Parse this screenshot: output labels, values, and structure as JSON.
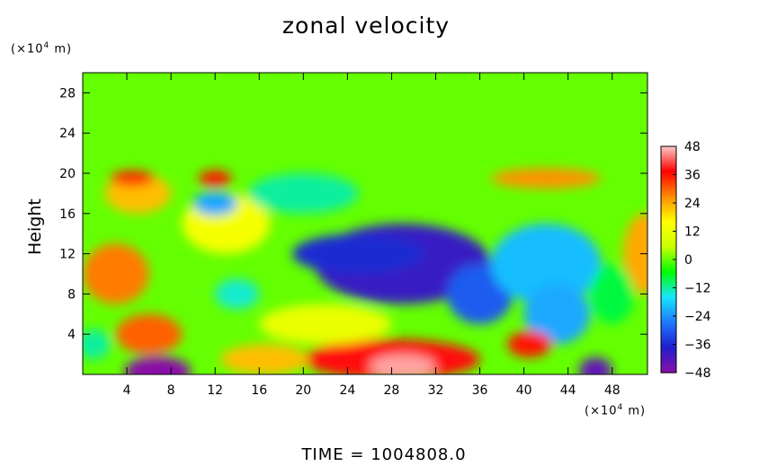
{
  "chart_data": {
    "type": "heatmap",
    "title": "zonal velocity",
    "ylabel": "Height",
    "x_unit_prefix": "(×10",
    "x_unit_exp": "4",
    "x_unit_suffix": " m)",
    "y_unit_prefix": "(×10",
    "y_unit_exp": "4",
    "y_unit_suffix": " m)",
    "x_ticks": [
      4,
      8,
      12,
      16,
      20,
      24,
      28,
      32,
      36,
      40,
      44,
      48
    ],
    "y_ticks": [
      4,
      8,
      12,
      16,
      20,
      24,
      28
    ],
    "xlim": [
      0,
      51.2
    ],
    "ylim": [
      0,
      30
    ],
    "colorbar_ticks": [
      48,
      36,
      24,
      12,
      0,
      -12,
      -24,
      -36,
      -48
    ],
    "colorbar_range": [
      -48,
      48
    ],
    "colorbar_colors": [
      "#8a0fa8",
      "#1e1ecc",
      "#1e78ff",
      "#16e6ff",
      "#00ff00",
      "#c8ff00",
      "#ffff00",
      "#ff8c00",
      "#ff0000",
      "#ffc8c8"
    ],
    "background_value": 0,
    "features": [
      {
        "x": 29,
        "y": 11,
        "rx": 8,
        "ry": 4,
        "value": -40
      },
      {
        "x": 25,
        "y": 12,
        "rx": 6,
        "ry": 2,
        "value": -36
      },
      {
        "x": 36,
        "y": 8,
        "rx": 3,
        "ry": 3,
        "value": -30
      },
      {
        "x": 42,
        "y": 11,
        "rx": 5,
        "ry": 4,
        "value": -20
      },
      {
        "x": 43,
        "y": 6,
        "rx": 3,
        "ry": 3,
        "value": -22
      },
      {
        "x": 28,
        "y": 1.5,
        "rx": 8,
        "ry": 2,
        "value": 38
      },
      {
        "x": 29,
        "y": 0.8,
        "rx": 3,
        "ry": 1.2,
        "value": 46
      },
      {
        "x": 6.8,
        "y": 0.3,
        "rx": 3,
        "ry": 1.5,
        "value": -48
      },
      {
        "x": 46.5,
        "y": 0.4,
        "rx": 1.5,
        "ry": 1.3,
        "value": -44
      },
      {
        "x": 6,
        "y": 4,
        "rx": 3,
        "ry": 2,
        "value": 30
      },
      {
        "x": 3,
        "y": 10,
        "rx": 3,
        "ry": 3,
        "value": 28
      },
      {
        "x": 5,
        "y": 18,
        "rx": 3,
        "ry": 2,
        "value": 22
      },
      {
        "x": 4.5,
        "y": 19.5,
        "rx": 2,
        "ry": 0.8,
        "value": 34
      },
      {
        "x": 12,
        "y": 19.5,
        "rx": 1.5,
        "ry": 0.8,
        "value": 36
      },
      {
        "x": 40.5,
        "y": 3,
        "rx": 2,
        "ry": 1.3,
        "value": 36
      },
      {
        "x": 42,
        "y": 19.5,
        "rx": 5,
        "ry": 1,
        "value": 26
      },
      {
        "x": 51,
        "y": 12,
        "rx": 2,
        "ry": 4,
        "value": 24
      },
      {
        "x": 13,
        "y": 15,
        "rx": 4,
        "ry": 3,
        "value": 14
      },
      {
        "x": 22,
        "y": 5,
        "rx": 6,
        "ry": 2,
        "value": 12
      },
      {
        "x": 20,
        "y": 18,
        "rx": 5,
        "ry": 2,
        "value": -12
      },
      {
        "x": 12,
        "y": 17,
        "rx": 2,
        "ry": 1.2,
        "value": -22
      },
      {
        "x": 16.5,
        "y": 1.5,
        "rx": 4,
        "ry": 1.5,
        "value": 22
      },
      {
        "x": 1,
        "y": 3,
        "rx": 1.5,
        "ry": 1.5,
        "value": -12
      },
      {
        "x": 14,
        "y": 8,
        "rx": 2,
        "ry": 1.5,
        "value": -14
      },
      {
        "x": 48,
        "y": 8,
        "rx": 2,
        "ry": 3,
        "value": -8
      }
    ]
  },
  "footer": {
    "time_label": "TIME",
    "time_eq": "=",
    "time_value": "1004808.0"
  }
}
